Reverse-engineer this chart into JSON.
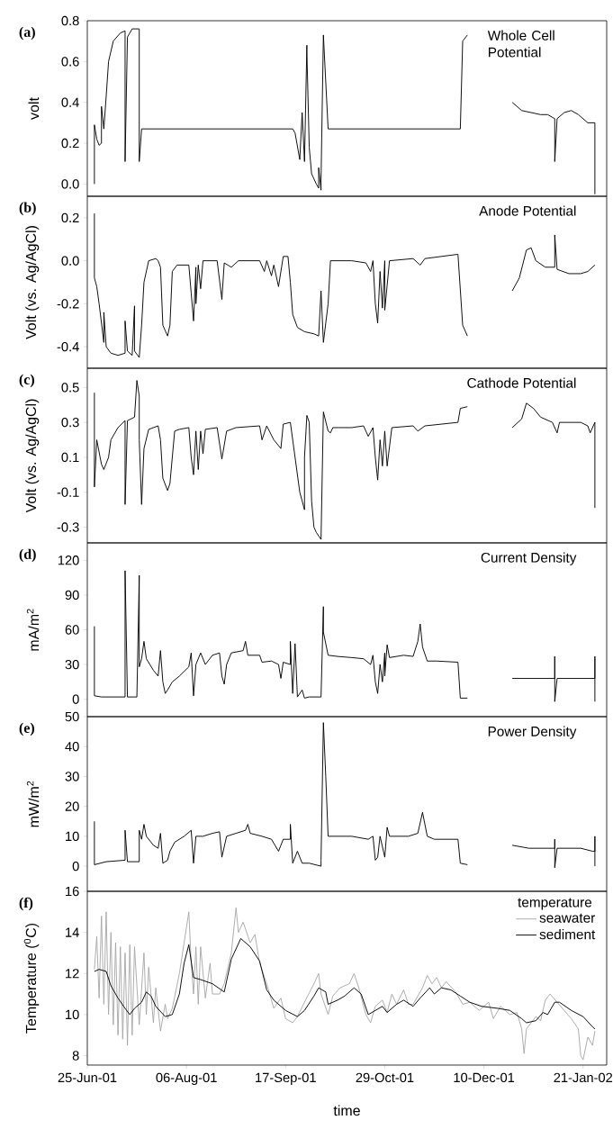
{
  "chart_data": [
    {
      "type": "line",
      "title": "Whole Cell Potential",
      "ylabel": "volt",
      "annotations": [
        "(a)"
      ],
      "tick_labels": "y",
      "xlim": [
        "2001-06-25",
        "2002-01-31"
      ],
      "ylim": [
        -0.06,
        0.8
      ],
      "yticks": [
        {
          "value": 0,
          "label": "0.0"
        },
        0.2,
        0.4,
        0.6,
        0.8
      ],
      "x": [
        "2001-06-28",
        "2001-06-28",
        "2001-06-29",
        "2001-06-30",
        "2001-07-01",
        "2001-07-01",
        "2001-07-02",
        "2001-07-03",
        "2001-07-04",
        "2001-07-06",
        "2001-07-09",
        "2001-07-11",
        "2001-07-11",
        "2001-07-12",
        "2001-07-14",
        "2001-07-17",
        "2001-07-17",
        "2001-07-18",
        "2001-09-20",
        "2001-09-21",
        "2001-09-23",
        "2001-09-24",
        "2001-09-25",
        "2001-09-26",
        "2001-09-26",
        "2001-09-27",
        "2001-09-28",
        "2001-09-30",
        "2001-10-01",
        "2001-10-01",
        "2001-10-02",
        "2001-10-02",
        "2001-10-03",
        "2001-10-05",
        "2001-11-30",
        "2001-12-01",
        "2001-12-03",
        "2001-12-12",
        "2001-12-22",
        "2001-12-26",
        "2002-01-03",
        "2002-01-06",
        "2002-01-09",
        "2002-01-09",
        "2002-01-10",
        "2002-01-13",
        "2002-01-16",
        "2002-01-19",
        "2002-01-23",
        "2002-01-26",
        "2002-01-26"
      ],
      "series": [
        {
          "color": "#000000",
          "values": [
            0.0,
            0.29,
            0.22,
            0.19,
            0.2,
            0.38,
            0.27,
            0.43,
            0.6,
            0.7,
            0.74,
            0.75,
            0.11,
            0.72,
            0.76,
            0.76,
            0.11,
            0.27,
            0.27,
            0.25,
            0.12,
            0.35,
            0.11,
            0.68,
            0.65,
            0.18,
            0.05,
            0.0,
            -0.02,
            0.08,
            -0.03,
            0.02,
            0.73,
            0.27,
            0.27,
            0.7,
            0.73,
            null,
            0.4,
            0.36,
            0.34,
            0.34,
            0.32,
            0.11,
            0.32,
            0.35,
            0.36,
            0.34,
            0.3,
            0.3,
            -0.05
          ]
        }
      ]
    },
    {
      "type": "line",
      "title": "Anode Potential",
      "ylabel": "Volt (vs. Ag/AgCl)",
      "annotations": [
        "(b)"
      ],
      "tick_labels": "y",
      "xlim": [
        "2001-06-25",
        "2002-01-31"
      ],
      "ylim": [
        -0.5,
        0.3
      ],
      "yticks": [
        -0.4,
        -0.2,
        {
          "value": 0,
          "label": "0.0"
        },
        0.2
      ],
      "x": [
        "2001-06-28",
        "2001-06-28",
        "2001-06-29",
        "2001-06-30",
        "2001-07-02",
        "2001-07-02",
        "2001-07-03",
        "2001-07-05",
        "2001-07-08",
        "2001-07-11",
        "2001-07-11",
        "2001-07-12",
        "2001-07-14",
        "2001-07-15",
        "2001-07-15",
        "2001-07-17",
        "2001-07-18",
        "2001-07-19",
        "2001-07-21",
        "2001-07-24",
        "2001-07-25",
        "2001-07-26",
        "2001-07-27",
        "2001-07-29",
        "2001-07-30",
        "2001-07-31",
        "2001-08-02",
        "2001-08-07",
        "2001-08-08",
        "2001-08-09",
        "2001-08-10",
        "2001-08-10",
        "2001-08-11",
        "2001-08-12",
        "2001-08-13",
        "2001-08-19",
        "2001-08-21",
        "2001-08-22",
        "2001-08-25",
        "2001-08-28",
        "2001-09-06",
        "2001-09-08",
        "2001-09-09",
        "2001-09-11",
        "2001-09-12",
        "2001-09-14",
        "2001-09-16",
        "2001-09-18",
        "2001-09-19",
        "2001-09-20",
        "2001-09-22",
        "2001-09-25",
        "2001-09-29",
        "2001-10-01",
        "2001-10-02",
        "2001-10-03",
        "2001-10-05",
        "2001-10-06",
        "2001-10-15",
        "2001-10-21",
        "2001-10-23",
        "2001-10-24",
        "2001-10-25",
        "2001-10-26",
        "2001-10-27",
        "2001-10-28",
        "2001-10-29",
        "2001-10-29",
        "2001-10-31",
        "2001-11-10",
        "2001-11-13",
        "2001-11-15",
        "2001-11-29",
        "2001-12-01",
        "2001-12-03",
        "2001-12-12",
        "2001-12-22",
        "2001-12-25",
        "2001-12-28",
        "2001-12-30",
        "2002-01-01",
        "2002-01-05",
        "2002-01-09",
        "2002-01-09",
        "2002-01-10",
        "2002-01-15",
        "2002-01-20",
        "2002-01-23",
        "2002-01-26"
      ],
      "series": [
        {
          "color": "#000000",
          "values": [
            0.22,
            -0.08,
            -0.12,
            -0.2,
            -0.38,
            -0.24,
            -0.4,
            -0.43,
            -0.44,
            -0.43,
            -0.28,
            -0.42,
            -0.44,
            -0.21,
            -0.42,
            -0.45,
            -0.3,
            -0.1,
            0.0,
            0.01,
            0.0,
            -0.03,
            -0.3,
            -0.35,
            -0.3,
            -0.05,
            -0.02,
            -0.02,
            -0.15,
            -0.28,
            -0.03,
            -0.2,
            -0.02,
            -0.13,
            0.0,
            0.0,
            -0.18,
            -0.01,
            -0.03,
            0.0,
            0.0,
            -0.05,
            0.0,
            -0.07,
            -0.02,
            -0.12,
            0.02,
            0.02,
            -0.1,
            -0.25,
            -0.31,
            -0.33,
            -0.34,
            -0.35,
            -0.14,
            -0.38,
            -0.2,
            0.0,
            0.0,
            -0.01,
            -0.05,
            0.0,
            -0.2,
            -0.29,
            -0.05,
            -0.22,
            0.0,
            -0.23,
            0.0,
            0.01,
            -0.02,
            0.01,
            0.03,
            -0.3,
            -0.35,
            null,
            -0.14,
            -0.08,
            0.05,
            0.06,
            0.0,
            -0.03,
            -0.03,
            0.12,
            -0.04,
            -0.06,
            -0.06,
            -0.05,
            -0.02
          ]
        }
      ]
    },
    {
      "type": "line",
      "title": "Cathode Potential",
      "ylabel": "Volt (vs. Ag/AgCl)",
      "annotations": [
        "(c)"
      ],
      "tick_labels": "y",
      "xlim": [
        "2001-06-25",
        "2002-01-31"
      ],
      "ylim": [
        -0.39,
        0.61
      ],
      "yticks": [
        -0.3,
        -0.1,
        0.1,
        0.3,
        0.5
      ],
      "x": [
        "2001-06-28",
        "2001-06-28",
        "2001-06-29",
        "2001-07-01",
        "2001-07-02",
        "2001-07-04",
        "2001-07-05",
        "2001-07-08",
        "2001-07-11",
        "2001-07-11",
        "2001-07-12",
        "2001-07-15",
        "2001-07-16",
        "2001-07-17",
        "2001-07-17",
        "2001-07-18",
        "2001-07-19",
        "2001-07-21",
        "2001-07-25",
        "2001-07-26",
        "2001-07-27",
        "2001-07-29",
        "2001-07-30",
        "2001-08-01",
        "2001-08-03",
        "2001-08-07",
        "2001-08-08",
        "2001-08-09",
        "2001-08-10",
        "2001-08-11",
        "2001-08-12",
        "2001-08-13",
        "2001-08-14",
        "2001-08-19",
        "2001-08-21",
        "2001-08-23",
        "2001-08-27",
        "2001-09-06",
        "2001-09-07",
        "2001-09-09",
        "2001-09-12",
        "2001-09-15",
        "2001-09-16",
        "2001-09-19",
        "2001-09-21",
        "2001-09-23",
        "2001-09-25",
        "2001-09-25",
        "2001-09-26",
        "2001-09-27",
        "2001-09-28",
        "2001-09-29",
        "2001-09-30",
        "2001-10-01",
        "2001-10-02",
        "2001-10-03",
        "2001-10-05",
        "2001-10-06",
        "2001-10-07",
        "2001-10-15",
        "2001-10-20",
        "2001-10-22",
        "2001-10-24",
        "2001-10-25",
        "2001-10-26",
        "2001-10-27",
        "2001-10-28",
        "2001-10-29",
        "2001-10-30",
        "2001-11-01",
        "2001-11-10",
        "2001-11-12",
        "2001-11-15",
        "2001-11-29",
        "2001-11-30",
        "2001-12-03",
        "2001-12-12",
        "2001-12-22",
        "2001-12-26",
        "2001-12-28",
        "2001-12-31",
        "2002-01-03",
        "2002-01-08",
        "2002-01-10",
        "2002-01-11",
        "2002-01-20",
        "2002-01-23",
        "2002-01-24",
        "2002-01-26",
        "2002-01-26"
      ],
      "series": [
        {
          "color": "#000000",
          "values": [
            0.47,
            -0.07,
            0.2,
            0.06,
            0.03,
            0.1,
            0.2,
            0.27,
            0.31,
            -0.17,
            0.31,
            0.33,
            0.54,
            0.45,
            0.2,
            -0.17,
            0.15,
            0.26,
            0.28,
            0.2,
            -0.02,
            -0.09,
            -0.05,
            0.25,
            0.26,
            0.27,
            0.1,
            0.0,
            0.25,
            0.03,
            0.25,
            0.12,
            0.26,
            0.27,
            0.09,
            0.25,
            0.27,
            0.28,
            0.2,
            0.28,
            0.2,
            0.15,
            0.29,
            0.3,
            0.1,
            -0.1,
            -0.2,
            0.1,
            0.34,
            0.3,
            -0.15,
            -0.3,
            -0.33,
            -0.35,
            -0.37,
            0.36,
            0.25,
            0.24,
            0.27,
            0.27,
            0.28,
            0.22,
            0.27,
            0.1,
            -0.03,
            0.2,
            0.05,
            0.25,
            0.05,
            0.27,
            0.28,
            0.25,
            0.28,
            0.3,
            0.38,
            0.39,
            null,
            0.27,
            0.32,
            0.41,
            0.38,
            0.33,
            0.3,
            0.24,
            0.3,
            0.3,
            0.28,
            0.24,
            0.3,
            -0.19
          ]
        }
      ]
    },
    {
      "type": "line",
      "title": "Current Density",
      "ylabel": "mA/m$^{2}$",
      "annotations": [
        "(d)"
      ],
      "tick_labels": "y",
      "xlim": [
        "2001-06-25",
        "2002-01-31"
      ],
      "ylim": [
        -15,
        135
      ],
      "yticks": [
        0,
        30,
        60,
        90,
        120
      ],
      "x": [
        "2001-06-28",
        "2001-06-28",
        "2001-07-01",
        "2001-07-11",
        "2001-07-11",
        "2001-07-12",
        "2001-07-16",
        "2001-07-17",
        "2001-07-17",
        "2001-07-18",
        "2001-07-19",
        "2001-07-20",
        "2001-07-23",
        "2001-07-25",
        "2001-07-26",
        "2001-07-27",
        "2001-07-28",
        "2001-07-29",
        "2001-07-31",
        "2001-08-03",
        "2001-08-07",
        "2001-08-08",
        "2001-08-09",
        "2001-08-10",
        "2001-08-12",
        "2001-08-14",
        "2001-08-17",
        "2001-08-20",
        "2001-08-21",
        "2001-08-22",
        "2001-08-23",
        "2001-08-25",
        "2001-08-30",
        "2001-08-31",
        "2001-09-01",
        "2001-09-06",
        "2001-09-07",
        "2001-09-11",
        "2001-09-14",
        "2001-09-15",
        "2001-09-16",
        "2001-09-19",
        "2001-09-19",
        "2001-09-20",
        "2001-09-21",
        "2001-09-22",
        "2001-09-24",
        "2001-09-25",
        "2001-09-27",
        "2001-10-02",
        "2001-10-03",
        "2001-10-03",
        "2001-10-05",
        "2001-10-09",
        "2001-10-15",
        "2001-10-20",
        "2001-10-23",
        "2001-10-24",
        "2001-10-25",
        "2001-10-26",
        "2001-10-27",
        "2001-10-28",
        "2001-10-29",
        "2001-10-29",
        "2001-10-30",
        "2001-10-31",
        "2001-11-06",
        "2001-11-10",
        "2001-11-12",
        "2001-11-13",
        "2001-11-14",
        "2001-11-16",
        "2001-11-20",
        "2001-11-29",
        "2001-11-30",
        "2001-12-03",
        "2001-12-12",
        "2001-12-22",
        "2002-01-09",
        "2002-01-09",
        "2002-01-09",
        "2002-01-10",
        "2002-01-26",
        "2002-01-26",
        "2002-01-26"
      ],
      "series": [
        {
          "color": "#000000",
          "values": [
            63,
            3,
            2,
            2,
            111,
            2,
            2,
            107,
            28,
            35,
            50,
            35,
            25,
            20,
            42,
            15,
            5,
            8,
            15,
            20,
            28,
            40,
            3,
            30,
            40,
            30,
            38,
            40,
            20,
            13,
            30,
            40,
            42,
            50,
            38,
            38,
            32,
            33,
            30,
            18,
            32,
            30,
            50,
            5,
            48,
            2,
            8,
            1,
            2,
            2,
            80,
            58,
            38,
            37,
            36,
            35,
            30,
            38,
            15,
            5,
            30,
            15,
            40,
            20,
            47,
            36,
            38,
            37,
            50,
            65,
            45,
            33,
            33,
            32,
            1,
            1,
            null,
            18,
            18,
            37,
            -2,
            18,
            18,
            37,
            -2
          ]
        }
      ]
    },
    {
      "type": "line",
      "title": "Power Density",
      "ylabel": "mW/m$^{2}$",
      "annotations": [
        "(e)"
      ],
      "tick_labels": "y",
      "xlim": [
        "2001-06-25",
        "2002-01-31"
      ],
      "ylim": [
        -8.4,
        50
      ],
      "yticks": [
        0,
        10,
        20,
        30,
        40,
        50
      ],
      "x": [
        "2001-06-28",
        "2001-06-28",
        "2001-07-03",
        "2001-07-11",
        "2001-07-11",
        "2001-07-12",
        "2001-07-17",
        "2001-07-17",
        "2001-07-18",
        "2001-07-19",
        "2001-07-20",
        "2001-07-23",
        "2001-07-25",
        "2001-07-26",
        "2001-07-27",
        "2001-07-29",
        "2001-07-30",
        "2001-08-01",
        "2001-08-05",
        "2001-08-08",
        "2001-08-09",
        "2001-08-10",
        "2001-08-13",
        "2001-08-17",
        "2001-08-20",
        "2001-08-21",
        "2001-08-23",
        "2001-08-27",
        "2001-08-31",
        "2001-09-01",
        "2001-09-02",
        "2001-09-07",
        "2001-09-11",
        "2001-09-14",
        "2001-09-16",
        "2001-09-19",
        "2001-09-19",
        "2001-09-20",
        "2001-09-22",
        "2001-09-24",
        "2001-09-27",
        "2001-10-02",
        "2001-10-02",
        "2001-10-03",
        "2001-10-04",
        "2001-10-05",
        "2001-10-10",
        "2001-10-15",
        "2001-10-22",
        "2001-10-24",
        "2001-10-25",
        "2001-10-26",
        "2001-10-27",
        "2001-10-29",
        "2001-10-30",
        "2001-10-31",
        "2001-11-08",
        "2001-11-12",
        "2001-11-14",
        "2001-11-16",
        "2001-11-19",
        "2001-11-29",
        "2001-11-30",
        "2001-12-03",
        "2001-12-12",
        "2001-12-22",
        "2001-12-29",
        "2002-01-09",
        "2002-01-09",
        "2002-01-09",
        "2002-01-10",
        "2002-01-20",
        "2002-01-25",
        "2002-01-26",
        "2002-01-26",
        "2002-01-26"
      ],
      "series": [
        {
          "color": "#000000",
          "values": [
            15,
            0.5,
            1.5,
            2,
            12,
            1.5,
            1.5,
            12,
            9,
            14,
            10,
            7,
            6,
            11,
            1,
            2,
            5,
            8,
            10,
            12,
            1,
            10,
            10,
            11,
            11.5,
            3,
            10,
            11,
            12,
            14,
            11,
            10,
            9,
            5,
            9,
            9,
            14,
            1,
            5,
            1,
            1,
            0,
            2,
            48,
            30,
            10,
            10,
            10,
            9,
            10,
            2,
            3,
            10,
            3,
            13,
            10,
            10,
            11,
            18,
            10,
            9,
            9,
            1,
            0.5,
            null,
            7,
            6,
            6,
            9,
            -0.5,
            6,
            6,
            5,
            5,
            10,
            0
          ]
        }
      ]
    },
    {
      "type": "line",
      "ylabel": "Temperature ($^{0}$C)",
      "xlabel": "time",
      "annotations": [
        "(f)"
      ],
      "legend": "top right",
      "legend_title": "temperature",
      "xlim": [
        "2001-06-25",
        "2002-01-31"
      ],
      "ylim": [
        7.54,
        16
      ],
      "xticks": [
        {
          "value": "2001-06-25",
          "label": "25-Jun-01"
        },
        {
          "value": "2001-08-06",
          "label": "06-Aug-01"
        },
        {
          "value": "2001-09-17",
          "label": "17-Sep-01"
        },
        {
          "value": "2001-10-29",
          "label": "29-Oct-01"
        },
        {
          "value": "2001-12-10",
          "label": "10-Dec-01"
        },
        {
          "value": "2002-01-21",
          "label": "21-Jan-02"
        }
      ],
      "yticks": [
        8,
        10,
        12,
        14,
        16
      ],
      "series": [
        {
          "name": "seawater",
          "color": "#a8a8a8",
          "x": [
            "2001-06-28",
            "2001-06-29",
            "2001-06-30",
            "2001-07-01",
            "2001-07-02",
            "2001-07-03",
            "2001-07-04",
            "2001-07-05",
            "2001-07-06",
            "2001-07-07",
            "2001-07-08",
            "2001-07-09",
            "2001-07-10",
            "2001-07-11",
            "2001-07-12",
            "2001-07-13",
            "2001-07-14",
            "2001-07-15",
            "2001-07-17",
            "2001-07-19",
            "2001-07-20",
            "2001-07-21",
            "2001-07-23",
            "2001-07-24",
            "2001-07-26",
            "2001-07-28",
            "2001-07-29",
            "2001-07-31",
            "2001-08-03",
            "2001-08-05",
            "2001-08-07",
            "2001-08-08",
            "2001-08-09",
            "2001-08-10",
            "2001-08-11",
            "2001-08-12",
            "2001-08-14",
            "2001-08-16",
            "2001-08-17",
            "2001-08-20",
            "2001-08-22",
            "2001-08-25",
            "2001-08-27",
            "2001-08-28",
            "2001-08-30",
            "2001-09-02",
            "2001-09-04",
            "2001-09-06",
            "2001-09-09",
            "2001-09-12",
            "2001-09-15",
            "2001-09-17",
            "2001-09-20",
            "2001-09-22",
            "2001-09-25",
            "2001-09-29",
            "2001-10-01",
            "2001-10-02",
            "2001-10-05",
            "2001-10-07",
            "2001-10-10",
            "2001-10-14",
            "2001-10-16",
            "2001-10-18",
            "2001-10-21",
            "2001-10-23",
            "2001-10-25",
            "2001-10-28",
            "2001-10-30",
            "2001-11-01",
            "2001-11-03",
            "2001-11-06",
            "2001-11-08",
            "2001-11-10",
            "2001-11-14",
            "2001-11-16",
            "2001-11-18",
            "2001-11-20",
            "2001-11-22",
            "2001-11-24",
            "2001-11-28",
            "2001-12-01",
            "2001-12-04",
            "2001-12-08",
            "2001-12-12",
            "2001-12-14",
            "2001-12-17",
            "2001-12-21",
            "2001-12-24",
            "2001-12-26",
            "2001-12-27",
            "2001-12-28",
            "2002-01-01",
            "2002-01-03",
            "2002-01-05",
            "2002-01-07",
            "2002-01-10",
            "2002-01-13",
            "2002-01-16",
            "2002-01-19",
            "2002-01-20",
            "2002-01-21",
            "2002-01-23",
            "2002-01-25",
            "2002-01-26"
          ],
          "values": [
            12.2,
            13.8,
            10.8,
            14.8,
            10.5,
            15.0,
            10.0,
            14.0,
            9.5,
            13.5,
            9.0,
            13.3,
            8.8,
            13.0,
            8.5,
            13.4,
            9.0,
            13.3,
            9.5,
            13.0,
            10.0,
            12.3,
            9.6,
            11.3,
            9.2,
            10.5,
            9.8,
            10.3,
            12.0,
            13.5,
            15.0,
            12.5,
            11.0,
            13.3,
            10.5,
            13.3,
            10.8,
            12.5,
            11.0,
            11.0,
            11.5,
            13.0,
            15.2,
            14.0,
            14.5,
            13.5,
            13.9,
            12.5,
            11.5,
            10.3,
            10.8,
            9.8,
            9.6,
            9.9,
            10.6,
            11.5,
            12.0,
            11.0,
            10.0,
            10.9,
            11.3,
            11.5,
            12.0,
            11.3,
            10.0,
            9.6,
            10.4,
            10.7,
            10.1,
            11.0,
            10.5,
            11.2,
            10.5,
            10.5,
            11.3,
            11.9,
            11.5,
            11.8,
            11.3,
            11.6,
            11.1,
            10.5,
            10.6,
            10.2,
            10.6,
            9.8,
            10.4,
            10.0,
            10.1,
            9.3,
            8.1,
            9.3,
            9.9,
            9.7,
            10.7,
            11.0,
            10.6,
            10.2,
            9.8,
            9.3,
            8.0,
            7.8,
            8.9,
            8.5,
            9.2
          ]
        },
        {
          "name": "sediment",
          "color": "#000000",
          "x": [
            "2001-06-28",
            "2001-06-30",
            "2001-07-03",
            "2001-07-05",
            "2001-07-08",
            "2001-07-11",
            "2001-07-13",
            "2001-07-15",
            "2001-07-18",
            "2001-07-20",
            "2001-07-22",
            "2001-07-24",
            "2001-07-28",
            "2001-07-31",
            "2001-08-03",
            "2001-08-05",
            "2001-08-07",
            "2001-08-09",
            "2001-08-12",
            "2001-08-17",
            "2001-08-22",
            "2001-08-25",
            "2001-08-29",
            "2001-09-02",
            "2001-09-06",
            "2001-09-09",
            "2001-09-12",
            "2001-09-17",
            "2001-09-22",
            "2001-09-25",
            "2001-09-29",
            "2001-10-01",
            "2001-10-04",
            "2001-10-05",
            "2001-10-09",
            "2001-10-12",
            "2001-10-16",
            "2001-10-19",
            "2001-10-22",
            "2001-10-25",
            "2001-10-28",
            "2001-10-30",
            "2001-11-03",
            "2001-11-06",
            "2001-11-10",
            "2001-11-13",
            "2001-11-17",
            "2001-11-19",
            "2001-11-22",
            "2001-11-26",
            "2001-11-30",
            "2001-12-04",
            "2001-12-09",
            "2001-12-16",
            "2001-12-21",
            "2001-12-26",
            "2001-12-28",
            "2002-01-01",
            "2002-01-04",
            "2002-01-06",
            "2002-01-09",
            "2002-01-11",
            "2002-01-16",
            "2002-01-21",
            "2002-01-25",
            "2002-01-26"
          ],
          "values": [
            12.1,
            12.2,
            12.1,
            11.4,
            10.8,
            10.3,
            10.0,
            10.3,
            10.6,
            11.1,
            10.9,
            10.4,
            9.9,
            10.0,
            11.0,
            12.5,
            13.4,
            11.8,
            11.7,
            11.5,
            11.1,
            12.7,
            13.7,
            13.3,
            12.6,
            11.2,
            10.7,
            10.2,
            9.9,
            10.2,
            10.9,
            11.3,
            11.1,
            10.5,
            10.7,
            10.9,
            11.3,
            11.0,
            10.0,
            10.2,
            10.4,
            10.1,
            10.5,
            10.7,
            10.4,
            10.8,
            11.3,
            11.0,
            11.3,
            11.2,
            10.9,
            10.6,
            10.4,
            10.3,
            10.2,
            9.8,
            9.6,
            9.7,
            10.1,
            10.0,
            10.6,
            10.6,
            10.2,
            9.9,
            9.4,
            9.3
          ]
        }
      ]
    }
  ]
}
